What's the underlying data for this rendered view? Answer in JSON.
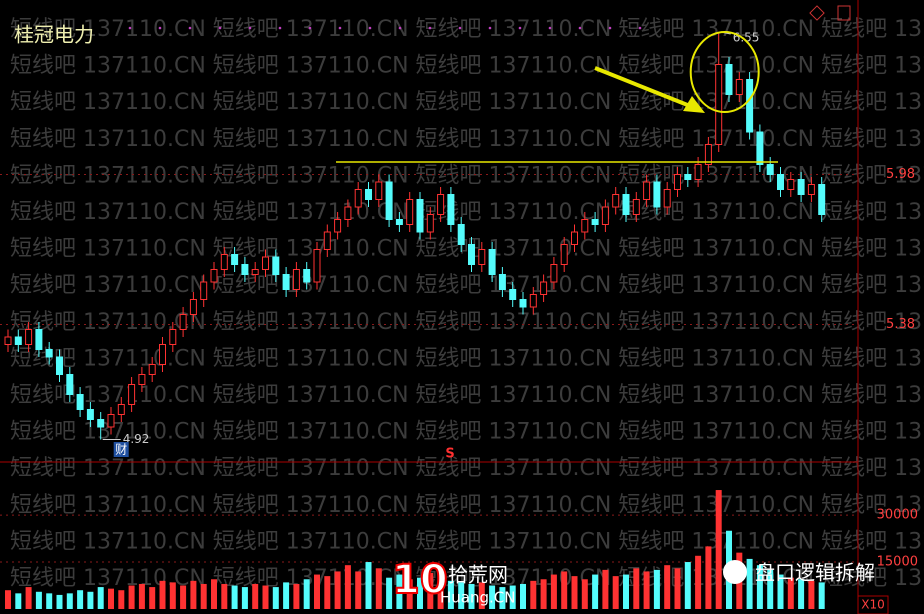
{
  "chart_data": {
    "type": "candlestick",
    "title": "桂冠电力",
    "open": [
      5.3,
      5.33,
      5.3,
      5.36,
      5.28,
      5.25,
      5.18,
      5.1,
      5.04,
      5.0,
      4.97,
      5.02,
      5.06,
      5.14,
      5.18,
      5.22,
      5.3,
      5.36,
      5.42,
      5.48,
      5.55,
      5.6,
      5.66,
      5.62,
      5.58,
      5.6,
      5.65,
      5.58,
      5.52,
      5.6,
      5.55,
      5.68,
      5.75,
      5.8,
      5.85,
      5.92,
      5.88,
      5.95,
      5.8,
      5.78,
      5.88,
      5.75,
      5.82,
      5.9,
      5.78,
      5.7,
      5.62,
      5.68,
      5.58,
      5.52,
      5.48,
      5.45,
      5.5,
      5.55,
      5.62,
      5.7,
      5.75,
      5.8,
      5.78,
      5.85,
      5.9,
      5.82,
      5.88,
      5.95,
      5.85,
      5.92,
      5.98,
      5.96,
      6.02,
      6.1,
      6.42,
      6.3,
      6.36,
      6.15,
      6.02,
      5.98,
      5.92,
      5.96,
      5.9,
      5.94
    ],
    "high": [
      5.36,
      5.36,
      5.39,
      5.39,
      5.31,
      5.28,
      5.21,
      5.13,
      5.07,
      5.03,
      5.05,
      5.09,
      5.17,
      5.21,
      5.25,
      5.33,
      5.39,
      5.45,
      5.51,
      5.58,
      5.63,
      5.69,
      5.69,
      5.65,
      5.63,
      5.68,
      5.68,
      5.61,
      5.63,
      5.63,
      5.71,
      5.78,
      5.83,
      5.88,
      5.95,
      5.95,
      5.98,
      5.98,
      5.83,
      5.91,
      5.91,
      5.85,
      5.93,
      5.93,
      5.81,
      5.73,
      5.71,
      5.71,
      5.61,
      5.55,
      5.51,
      5.53,
      5.58,
      5.65,
      5.73,
      5.78,
      5.83,
      5.83,
      5.88,
      5.93,
      5.93,
      5.91,
      5.98,
      5.98,
      5.95,
      6.01,
      6.01,
      6.05,
      6.13,
      6.55,
      6.45,
      6.39,
      6.39,
      6.18,
      6.05,
      6.01,
      5.99,
      5.99,
      5.97,
      5.97
    ],
    "low": [
      5.27,
      5.27,
      5.27,
      5.25,
      5.22,
      5.15,
      5.07,
      5.01,
      4.97,
      4.92,
      4.94,
      4.99,
      5.03,
      5.11,
      5.15,
      5.19,
      5.27,
      5.33,
      5.39,
      5.45,
      5.52,
      5.57,
      5.59,
      5.55,
      5.55,
      5.57,
      5.55,
      5.49,
      5.49,
      5.52,
      5.52,
      5.65,
      5.72,
      5.77,
      5.82,
      5.85,
      5.85,
      5.77,
      5.75,
      5.75,
      5.72,
      5.72,
      5.79,
      5.75,
      5.67,
      5.59,
      5.59,
      5.55,
      5.49,
      5.45,
      5.42,
      5.42,
      5.47,
      5.52,
      5.59,
      5.67,
      5.72,
      5.75,
      5.75,
      5.82,
      5.79,
      5.79,
      5.85,
      5.82,
      5.82,
      5.89,
      5.93,
      5.93,
      5.99,
      6.07,
      6.27,
      6.27,
      6.12,
      5.99,
      5.95,
      5.89,
      5.89,
      5.87,
      5.87,
      5.79
    ],
    "close": [
      5.33,
      5.3,
      5.36,
      5.28,
      5.25,
      5.18,
      5.1,
      5.04,
      5.0,
      4.97,
      5.02,
      5.06,
      5.14,
      5.18,
      5.22,
      5.3,
      5.36,
      5.42,
      5.48,
      5.55,
      5.6,
      5.66,
      5.62,
      5.58,
      5.6,
      5.65,
      5.58,
      5.52,
      5.6,
      5.55,
      5.68,
      5.75,
      5.8,
      5.85,
      5.92,
      5.88,
      5.95,
      5.8,
      5.78,
      5.88,
      5.75,
      5.82,
      5.9,
      5.78,
      5.7,
      5.62,
      5.68,
      5.58,
      5.52,
      5.48,
      5.45,
      5.5,
      5.55,
      5.62,
      5.7,
      5.75,
      5.8,
      5.78,
      5.85,
      5.9,
      5.82,
      5.88,
      5.95,
      5.85,
      5.92,
      5.98,
      5.96,
      6.02,
      6.1,
      6.42,
      6.3,
      6.36,
      6.15,
      6.02,
      5.98,
      5.92,
      5.96,
      5.9,
      5.94,
      5.82
    ],
    "volume": [
      6000,
      5000,
      7000,
      5500,
      5000,
      4500,
      5000,
      6000,
      5500,
      7000,
      6500,
      6000,
      7500,
      8000,
      7000,
      9000,
      8500,
      7500,
      9000,
      8000,
      9500,
      8000,
      7500,
      7000,
      8000,
      7500,
      7000,
      8500,
      8000,
      9500,
      11000,
      10500,
      12000,
      14000,
      12000,
      15000,
      13000,
      10000,
      11000,
      9500,
      10000,
      11500,
      10500,
      9000,
      8500,
      8000,
      8500,
      7500,
      7000,
      7500,
      8000,
      9000,
      9500,
      11000,
      12000,
      10500,
      9500,
      11000,
      12500,
      10500,
      11000,
      13000,
      12000,
      12500,
      14000,
      13000,
      15000,
      17000,
      20000,
      38000,
      25000,
      18000,
      16000,
      14000,
      12500,
      11000,
      10000,
      9500,
      9000,
      8500
    ],
    "up_color": "#ff3232",
    "down_color": "#54fcfc",
    "ylim": [
      4.83,
      6.67
    ],
    "yticks": [
      5.38,
      5.98
    ],
    "y2lim": [
      0,
      46000
    ],
    "y2ticks": [
      15000,
      30000
    ],
    "reference_line": 6.03,
    "max_label": "6.55",
    "min_label": "4.92",
    "event_label": "财",
    "signal_label": "S",
    "watermark": "短线吧 137110.CN",
    "logos": [
      "10",
      "拾荒网",
      "Huang.CN",
      "盘口逻辑拆解"
    ],
    "zoom_label": "X10"
  }
}
